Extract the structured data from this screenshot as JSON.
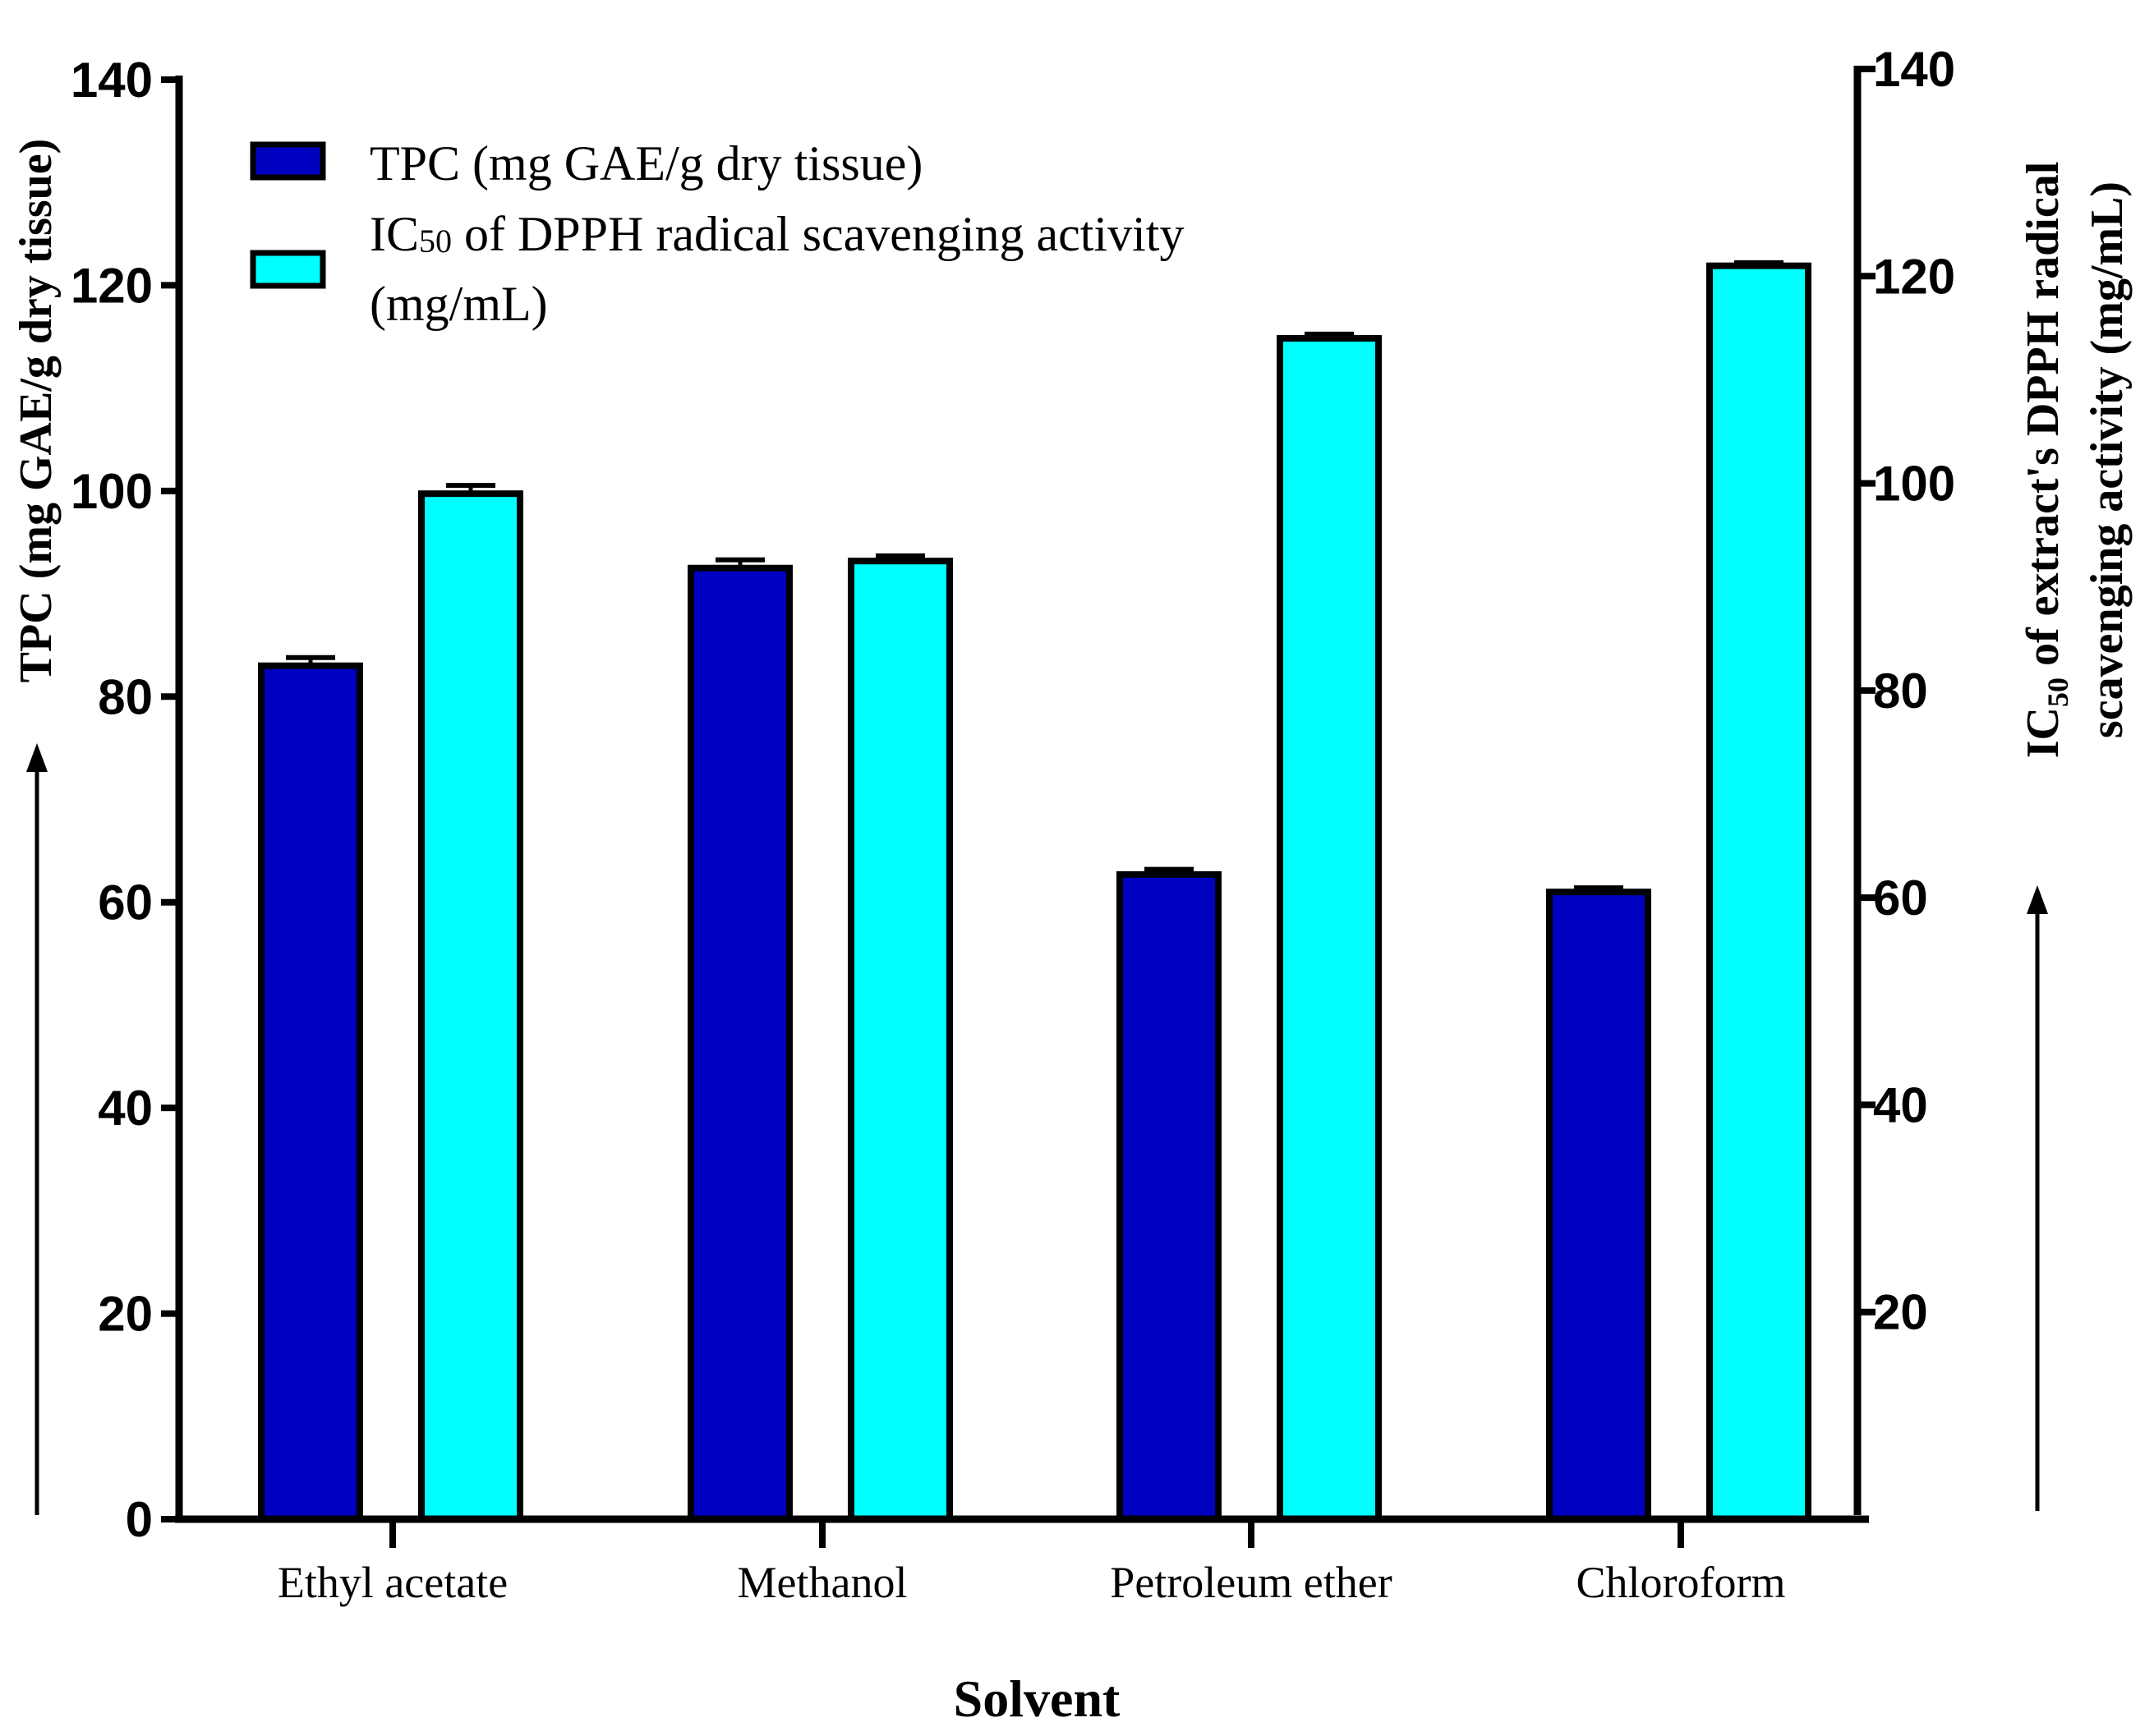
{
  "chart_data": {
    "type": "bar",
    "xlabel": "Solvent",
    "categories": [
      "Ethyl acetate",
      "Methanol",
      "Petroleum ether",
      "Chloroform"
    ],
    "series": [
      {
        "name": "TPC (mg GAE/g dry tissue)",
        "axis": "left",
        "color": "#0000C0",
        "values": [
          83,
          92.5,
          62.7,
          61
        ],
        "errors": [
          0.8,
          0.8,
          0.5,
          0.4
        ]
      },
      {
        "name_main": "IC",
        "name_sub": "50",
        "name_rest": " of DPPH radical scavenging activity",
        "name_line2": "(mg/mL)",
        "axis": "right",
        "color": "#00FFFF",
        "values": [
          99,
          92.5,
          114,
          121
        ],
        "errors": [
          0.8,
          0.5,
          0.4,
          0.3
        ]
      }
    ],
    "y_left": {
      "label": "TPC (mg GAE/g dry tissue)",
      "range": [
        0,
        140
      ],
      "ticks": [
        0,
        20,
        40,
        60,
        80,
        100,
        120,
        140
      ]
    },
    "y_right": {
      "label_main": "IC",
      "label_sub": "50",
      "label_rest": " of extract's DPPH radical",
      "label_line2": "scavenging activity (mg/mL)",
      "range": [
        0,
        140
      ],
      "ticks": [
        20,
        40,
        60,
        80,
        100,
        120,
        140
      ]
    },
    "grid": false,
    "legend_position": "top-left"
  }
}
